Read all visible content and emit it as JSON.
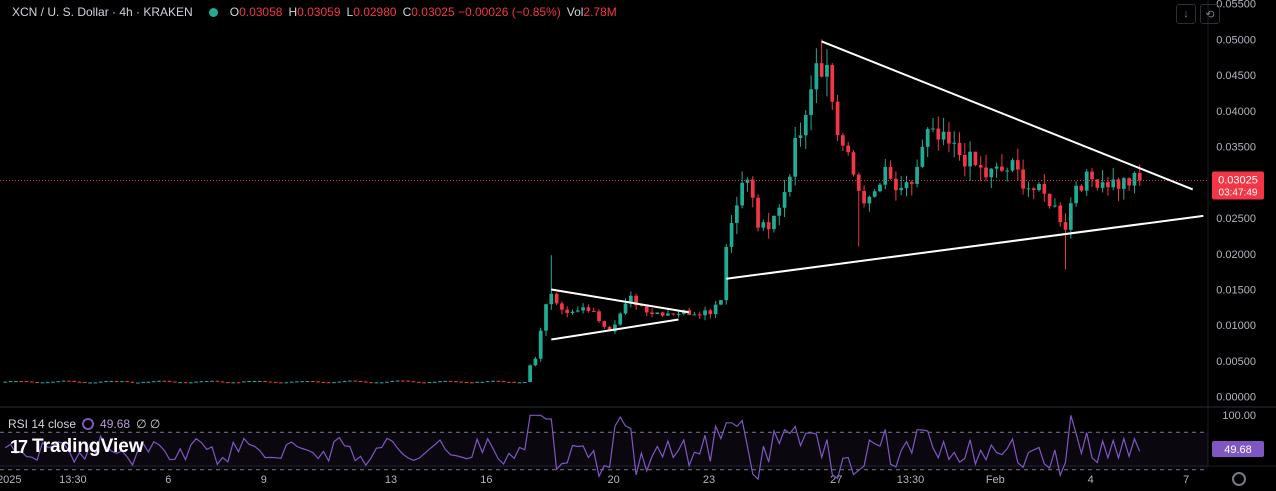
{
  "header": {
    "symbol_title": "XCN / U. S. Dollar · 4h · KRAKEN",
    "ohlc": [
      {
        "label": "O",
        "value": "0.03058"
      },
      {
        "label": "H",
        "value": "0.03059"
      },
      {
        "label": "L",
        "value": "0.02980"
      },
      {
        "label": "C",
        "value": "0.03025 −0.00026 (−0.85%)"
      },
      {
        "label": "Vol",
        "value": "2.78M"
      }
    ]
  },
  "toolbar": {
    "icons": [
      "download-icon",
      "refresh-icon"
    ]
  },
  "price_badge": {
    "price": "0.03025",
    "countdown": "03:47:49"
  },
  "rsi": {
    "label": "RSI 14 close",
    "value": "49.68",
    "extra": "∅ ∅",
    "axis_top": "100.00",
    "badge": "49.68"
  },
  "brand": {
    "name": "TradingView",
    "mark": "17"
  },
  "colors": {
    "up": "#22ab94",
    "down": "#f23645",
    "rsi": "#7e57c2",
    "trendline": "#ffffff",
    "background": "#000000"
  },
  "chart_data": {
    "type": "candlestick",
    "title": "XCN / U. S. Dollar · 4h · KRAKEN",
    "ylim": [
      -0.0013,
      0.0555
    ],
    "y_ticks": [
      0,
      0.005,
      0.01,
      0.015,
      0.02,
      0.025,
      0.03,
      0.035,
      0.04,
      0.045,
      0.05,
      0.055
    ],
    "y_tick_labels": [
      "0.00000",
      "0.00500",
      "0.01000",
      "0.01500",
      "0.02000",
      "0.02500",
      "0.03000",
      "0.03500",
      "0.04000",
      "0.04500",
      "0.05000",
      "0.05500"
    ],
    "x_ticks": [
      {
        "label": "2025",
        "pos": 0
      },
      {
        "label": "13:30",
        "pos": 12
      },
      {
        "label": "6",
        "pos": 30
      },
      {
        "label": "9",
        "pos": 48
      },
      {
        "label": "13",
        "pos": 72
      },
      {
        "label": "16",
        "pos": 90
      },
      {
        "label": "20",
        "pos": 114
      },
      {
        "label": "23",
        "pos": 132
      },
      {
        "label": "27",
        "pos": 156
      },
      {
        "label": "13:30",
        "pos": 170
      },
      {
        "label": "Feb",
        "pos": 186
      },
      {
        "label": "4",
        "pos": 204
      },
      {
        "label": "7",
        "pos": 222
      }
    ],
    "x_range": [
      -1,
      226.5
    ],
    "last_close": 0.03025,
    "key_prices": [
      {
        "pos": 98,
        "price": 0.0033
      },
      {
        "pos": 100,
        "price": 0.0055
      },
      {
        "pos": 102,
        "price": 0.0125
      },
      {
        "pos": 103,
        "price": 0.0147
      },
      {
        "pos": 106,
        "price": 0.0115
      },
      {
        "pos": 110,
        "price": 0.0123
      },
      {
        "pos": 114,
        "price": 0.0095
      },
      {
        "pos": 118,
        "price": 0.0137
      },
      {
        "pos": 122,
        "price": 0.0118
      },
      {
        "pos": 128,
        "price": 0.0118
      },
      {
        "pos": 133,
        "price": 0.012
      },
      {
        "pos": 135,
        "price": 0.014
      },
      {
        "pos": 136,
        "price": 0.021
      },
      {
        "pos": 138,
        "price": 0.028
      },
      {
        "pos": 140,
        "price": 0.0305
      },
      {
        "pos": 142,
        "price": 0.024
      },
      {
        "pos": 144,
        "price": 0.023
      },
      {
        "pos": 147,
        "price": 0.029
      },
      {
        "pos": 149,
        "price": 0.035
      },
      {
        "pos": 151,
        "price": 0.041
      },
      {
        "pos": 153,
        "price": 0.0475
      },
      {
        "pos": 155,
        "price": 0.046
      },
      {
        "pos": 157,
        "price": 0.037
      },
      {
        "pos": 159,
        "price": 0.033
      },
      {
        "pos": 161,
        "price": 0.029
      },
      {
        "pos": 163,
        "price": 0.027
      },
      {
        "pos": 166,
        "price": 0.031
      },
      {
        "pos": 169,
        "price": 0.028
      },
      {
        "pos": 171,
        "price": 0.03
      },
      {
        "pos": 174,
        "price": 0.0365
      },
      {
        "pos": 177,
        "price": 0.0355
      },
      {
        "pos": 181,
        "price": 0.0335
      },
      {
        "pos": 185,
        "price": 0.031
      },
      {
        "pos": 190,
        "price": 0.032
      },
      {
        "pos": 193,
        "price": 0.0295
      },
      {
        "pos": 197,
        "price": 0.0275
      },
      {
        "pos": 200,
        "price": 0.024
      },
      {
        "pos": 202,
        "price": 0.03
      },
      {
        "pos": 206,
        "price": 0.0305
      },
      {
        "pos": 210,
        "price": 0.0298
      },
      {
        "pos": 213,
        "price": 0.0302
      }
    ],
    "trendlines": [
      {
        "from": [
          103,
          0.015
        ],
        "to": [
          129,
          0.0118
        ]
      },
      {
        "from": [
          103,
          0.008
        ],
        "to": [
          127,
          0.0108
        ]
      },
      {
        "from": [
          136,
          0.0165
        ],
        "to": [
          226,
          0.0253
        ]
      },
      {
        "from": [
          154,
          0.0497
        ],
        "to": [
          224,
          0.029
        ]
      }
    ],
    "rsi_ylim": [
      0,
      100
    ],
    "rsi_last": 49.68
  }
}
